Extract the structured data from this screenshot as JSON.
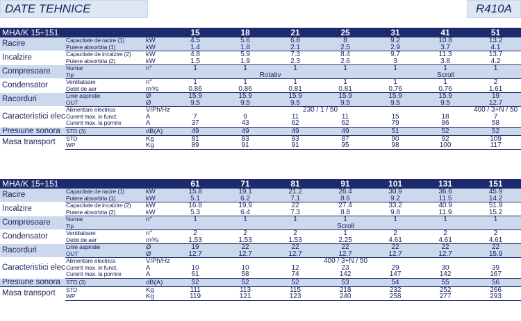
{
  "header": {
    "title": "DATE TEHNICE",
    "refrigerant": "R410A"
  },
  "table1": {
    "model": "MHA/K 15÷151",
    "columns": [
      "15",
      "18",
      "21",
      "25",
      "31",
      "41",
      "51"
    ],
    "sections": [
      {
        "category": "Racire",
        "shade": true,
        "rows": [
          {
            "param": "Capacitate de racire (1)",
            "unit": "kW",
            "values": [
              "4.5",
              "5.6",
              "6.8",
              "8",
              "9.2",
              "10.8",
              "13.2"
            ]
          },
          {
            "param": "Putere absorbita (1)",
            "unit": "kW",
            "values": [
              "1.4",
              "1.8",
              "2.1",
              "2.5",
              "2.9",
              "3.7",
              "4.1"
            ]
          }
        ]
      },
      {
        "category": "Incalzire",
        "shade": false,
        "rows": [
          {
            "param": "Capacitate de incalzire (2)",
            "unit": "kW",
            "values": [
              "4.8",
              "5.9",
              "7.3",
              "8.4",
              "9.7",
              "11.3",
              "13.7"
            ]
          },
          {
            "param": "Putere absorbita (2)",
            "unit": "kW",
            "values": [
              "1.5",
              "1.9",
              "2.3",
              "2.6",
              "3",
              "3.8",
              "4.2"
            ]
          }
        ]
      },
      {
        "category": "Compresoare",
        "shade": true,
        "rows": [
          {
            "param": "Numar",
            "unit": "n°",
            "values": [
              "1",
              "1",
              "1",
              "1",
              "1",
              "1",
              "1"
            ]
          },
          {
            "param": "Tip",
            "unit": "",
            "spans": [
              {
                "text": "Rotativ",
                "span": 4
              },
              {
                "text": "Scroll",
                "span": 3
              }
            ]
          }
        ]
      },
      {
        "category": "Condensator",
        "shade": false,
        "rows": [
          {
            "param": "Ventilatoare",
            "unit": "n°",
            "values": [
              "1",
              "1",
              "1",
              "1",
              "1",
              "1",
              "2"
            ]
          },
          {
            "param": "Debit de aer",
            "unit": "m³/s",
            "values": [
              "0.86",
              "0.86",
              "0.81",
              "0.81",
              "0.76",
              "0.76",
              "1.61"
            ]
          }
        ]
      },
      {
        "category": "Racorduri",
        "shade": true,
        "rows": [
          {
            "param": "Linie aspiratie",
            "unit": "Ø",
            "values": [
              "15.9",
              "15.9",
              "15.9",
              "15.9",
              "15.9",
              "15.9",
              "19"
            ]
          },
          {
            "param": "OUT",
            "unit": "Ø",
            "values": [
              "9.5",
              "9.5",
              "9.5",
              "9.5",
              "9.5",
              "9.5",
              "12.7"
            ]
          }
        ]
      },
      {
        "category": "Caracteristici electrice",
        "shade": false,
        "rows": [
          {
            "param": "Alimentare electrica",
            "unit": "V/Ph/Hz",
            "spans": [
              {
                "text": "230 / 1 / 50",
                "span": 6
              },
              {
                "text": "400 / 3+N / 50",
                "span": 1
              }
            ]
          },
          {
            "param": "Curent max. in funct.",
            "unit": "A",
            "values": [
              "7",
              "9",
              "11",
              "11",
              "15",
              "18",
              "7"
            ]
          },
          {
            "param": "Curent max. la pornire",
            "unit": "A",
            "values": [
              "37",
              "43",
              "62",
              "62",
              "79",
              "86",
              "58"
            ]
          }
        ]
      },
      {
        "category": "Presiune sonora",
        "shade": true,
        "rows": [
          {
            "param": "STD (3)",
            "unit": "dB(A)",
            "values": [
              "49",
              "49",
              "49",
              "49",
              "51",
              "52",
              "52"
            ]
          }
        ]
      },
      {
        "category": "Masa transport",
        "shade": false,
        "rows": [
          {
            "param": "STD",
            "unit": "Kg",
            "values": [
              "81",
              "83",
              "83",
              "87",
              "90",
              "92",
              "109"
            ]
          },
          {
            "param": "WP",
            "unit": "Kg",
            "values": [
              "89",
              "91",
              "91",
              "95",
              "98",
              "100",
              "117"
            ]
          }
        ]
      }
    ]
  },
  "table2": {
    "model": "MHA/K 15÷151",
    "columns": [
      "61",
      "71",
      "81",
      "91",
      "101",
      "131",
      "151"
    ],
    "sections": [
      {
        "category": "Racire",
        "shade": true,
        "rows": [
          {
            "param": "Capacitate de racire (1)",
            "unit": "kW",
            "values": [
              "15.8",
              "19.1",
              "21.2",
              "26.4",
              "30.9",
              "36.6",
              "45.9"
            ]
          },
          {
            "param": "Putere absorbita (1)",
            "unit": "kW",
            "values": [
              "5.1",
              "6.2",
              "7.1",
              "8.6",
              "9.2",
              "11.5",
              "14.2"
            ]
          }
        ]
      },
      {
        "category": "Incalzire",
        "shade": false,
        "rows": [
          {
            "param": "Capacitate de incalzire (2)",
            "unit": "kW",
            "values": [
              "16.8",
              "19.9",
              "22",
              "27.4",
              "33.2",
              "40.9",
              "51.9"
            ]
          },
          {
            "param": "Putere absorbita (2)",
            "unit": "kW",
            "values": [
              "5.3",
              "6.4",
              "7.3",
              "8.8",
              "9.8",
              "11.9",
              "15.2"
            ]
          }
        ]
      },
      {
        "category": "Compresoare",
        "shade": true,
        "rows": [
          {
            "param": "Numar",
            "unit": "n°",
            "values": [
              "1",
              "1",
              "1",
              "1",
              "1",
              "1",
              "1"
            ]
          },
          {
            "param": "Tip",
            "unit": "",
            "spans": [
              {
                "text": "Scroll",
                "span": 7
              }
            ]
          }
        ]
      },
      {
        "category": "Condensator",
        "shade": false,
        "rows": [
          {
            "param": "Ventilatoare",
            "unit": "n°",
            "values": [
              "2",
              "2",
              "2",
              "1",
              "2",
              "2",
              "2"
            ]
          },
          {
            "param": "Debit de aer",
            "unit": "m³/s",
            "values": [
              "1.53",
              "1.53",
              "1.53",
              "2.25",
              "4.61",
              "4.61",
              "4.61"
            ]
          }
        ]
      },
      {
        "category": "Racorduri",
        "shade": true,
        "rows": [
          {
            "param": "Linie aspiratie",
            "unit": "Ø",
            "values": [
              "19",
              "22",
              "22",
              "22",
              "22",
              "22",
              "22"
            ]
          },
          {
            "param": "OUT",
            "unit": "Ø",
            "values": [
              "12.7",
              "12.7",
              "12.7",
              "12.7",
              "12.7",
              "12.7",
              "15.9"
            ]
          }
        ]
      },
      {
        "category": "Caracteristici electrice",
        "shade": false,
        "rows": [
          {
            "param": "Alimentare electrica",
            "unit": "V/Ph/Hz",
            "spans": [
              {
                "text": "400 / 3+N / 50",
                "span": 7
              }
            ]
          },
          {
            "param": "Curent max. in funct.",
            "unit": "A",
            "values": [
              "10",
              "10",
              "12",
              "23",
              "29",
              "30",
              "39"
            ]
          },
          {
            "param": "Curent max. la pornire",
            "unit": "A",
            "values": [
              "61",
              "58",
              "74",
              "142",
              "147",
              "142",
              "167"
            ]
          }
        ]
      },
      {
        "category": "Presiune sonora",
        "shade": true,
        "rows": [
          {
            "param": "STD (3)",
            "unit": "dB(A)",
            "values": [
              "52",
              "52",
              "52",
              "53",
              "54",
              "55",
              "56"
            ]
          }
        ]
      },
      {
        "category": "Masa transport",
        "shade": false,
        "rows": [
          {
            "param": "STD",
            "unit": "Kg",
            "values": [
              "111",
              "113",
              "115",
              "218",
              "232",
              "252",
              "266"
            ]
          },
          {
            "param": "WP",
            "unit": "Kg",
            "values": [
              "119",
              "121",
              "123",
              "240",
              "258",
              "277",
              "293"
            ]
          }
        ]
      }
    ]
  }
}
